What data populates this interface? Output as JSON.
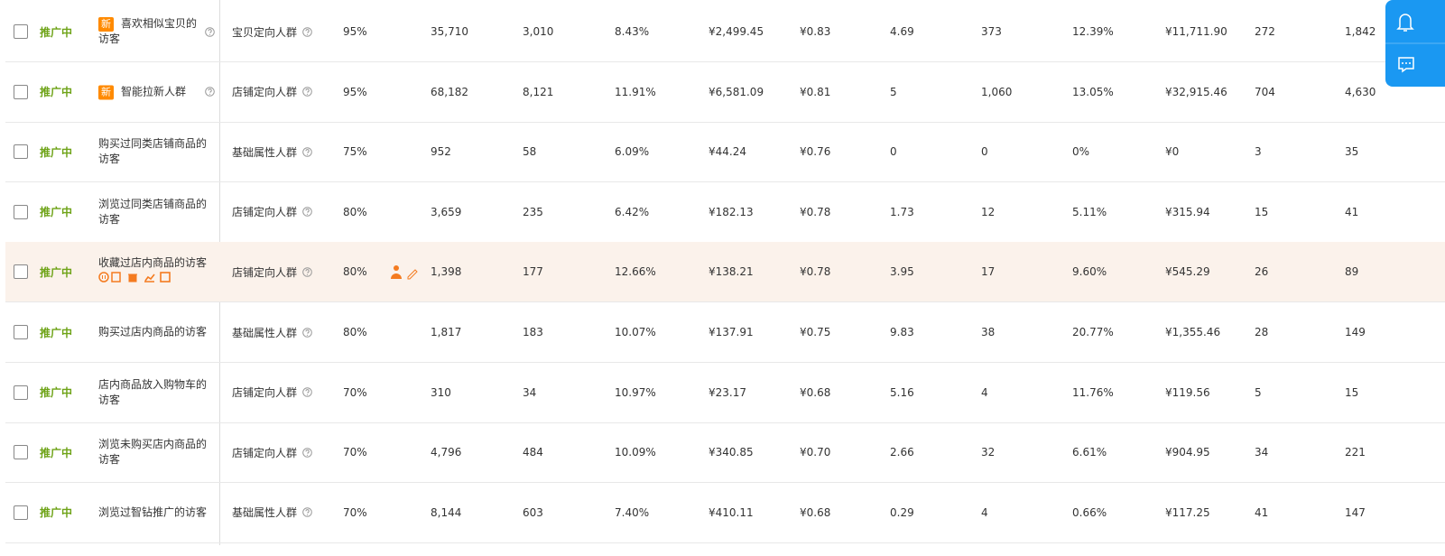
{
  "table": {
    "rows": [
      {
        "status": "推广中",
        "tag": "新",
        "name": "喜欢相似宝贝的访客",
        "type": "宝贝定向人群",
        "cells": [
          "95%",
          "35,710",
          "3,010",
          "8.43%",
          "¥2,499.45",
          "¥0.83",
          "4.69",
          "373",
          "12.39%",
          "¥11,711.90",
          "272",
          "1,842"
        ]
      },
      {
        "status": "推广中",
        "tag": "新",
        "name": "智能拉新人群",
        "type": "店铺定向人群",
        "cells": [
          "95%",
          "68,182",
          "8,121",
          "11.91%",
          "¥6,581.09",
          "¥0.81",
          "5",
          "1,060",
          "13.05%",
          "¥32,915.46",
          "704",
          "4,630"
        ]
      },
      {
        "status": "推广中",
        "name": "购买过同类店铺商品的访客",
        "type": "基础属性人群",
        "cells": [
          "75%",
          "952",
          "58",
          "6.09%",
          "¥44.24",
          "¥0.76",
          "0",
          "0",
          "0%",
          "¥0",
          "3",
          "35"
        ]
      },
      {
        "status": "推广中",
        "name": "浏览过同类店铺商品的访客",
        "type": "店铺定向人群",
        "cells": [
          "80%",
          "3,659",
          "235",
          "6.42%",
          "¥182.13",
          "¥0.78",
          "1.73",
          "12",
          "5.11%",
          "¥315.94",
          "15",
          "41"
        ]
      },
      {
        "status": "推广中",
        "name": "收藏过店内商品的访客",
        "type": "店铺定向人群",
        "cells": [
          "80%",
          "1,398",
          "177",
          "12.66%",
          "¥138.21",
          "¥0.78",
          "3.95",
          "17",
          "9.60%",
          "¥545.29",
          "26",
          "89"
        ]
      },
      {
        "status": "推广中",
        "name": "购买过店内商品的访客",
        "type": "基础属性人群",
        "cells": [
          "80%",
          "1,817",
          "183",
          "10.07%",
          "¥137.91",
          "¥0.75",
          "9.83",
          "38",
          "20.77%",
          "¥1,355.46",
          "28",
          "149"
        ]
      },
      {
        "status": "推广中",
        "name": "店内商品放入购物车的访客",
        "type": "店铺定向人群",
        "cells": [
          "70%",
          "310",
          "34",
          "10.97%",
          "¥23.17",
          "¥0.68",
          "5.16",
          "4",
          "11.76%",
          "¥119.56",
          "5",
          "15"
        ]
      },
      {
        "status": "推广中",
        "name": "浏览未购买店内商品的访客",
        "type": "店铺定向人群",
        "cells": [
          "70%",
          "4,796",
          "484",
          "10.09%",
          "¥340.85",
          "¥0.70",
          "2.66",
          "32",
          "6.61%",
          "¥904.95",
          "34",
          "221"
        ]
      },
      {
        "status": "推广中",
        "name": "浏览过智钻推广的访客",
        "type": "基础属性人群",
        "cells": [
          "70%",
          "8,144",
          "603",
          "7.40%",
          "¥410.11",
          "¥0.68",
          "0.29",
          "4",
          "0.66%",
          "¥117.25",
          "41",
          "147"
        ]
      }
    ]
  }
}
